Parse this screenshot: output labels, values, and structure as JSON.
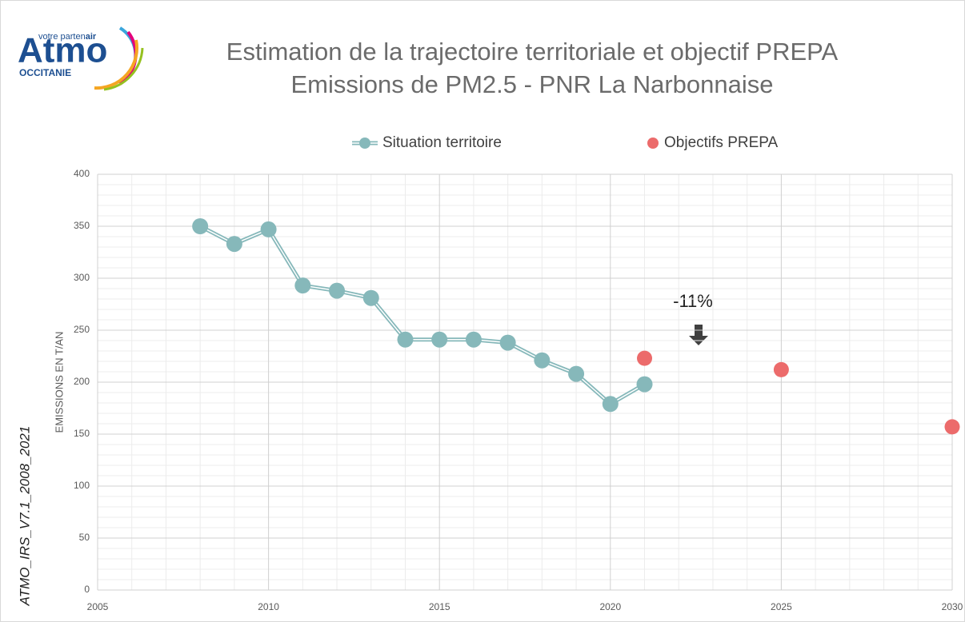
{
  "logo": {
    "tagline": "votre parten",
    "tagline_bold": "air",
    "name": "Atmo",
    "region": "OCCITANIE"
  },
  "side_label": "ATMO_IRS_V7.1_2008_2021",
  "chart_data": {
    "type": "line",
    "title": "Estimation de la trajectoire territoriale et objectif PREPA",
    "subtitle": "Emissions de PM2.5 - PNR La Narbonnaise",
    "ylabel": "EMISSIONS  EN T/AN",
    "annotation": "-11%",
    "series": [
      {
        "name": "Situation territoire",
        "color": "#86b8ba",
        "style": "line",
        "x": [
          2008,
          2009,
          2010,
          2011,
          2012,
          2013,
          2014,
          2015,
          2016,
          2017,
          2018,
          2019,
          2020,
          2021
        ],
        "values": [
          350,
          333,
          347,
          293,
          288,
          281,
          241,
          241,
          241,
          238,
          221,
          208,
          179,
          198
        ]
      },
      {
        "name": "Objectifs PREPA",
        "color": "#ec6b6b",
        "style": "points",
        "x": [
          2021,
          2025,
          2030
        ],
        "values": [
          223,
          212,
          157
        ]
      }
    ],
    "xlim": [
      2005,
      2030
    ],
    "xticks": [
      2005,
      2010,
      2015,
      2020,
      2025,
      2030
    ],
    "ylim": [
      0,
      400
    ],
    "yticks": [
      0,
      50,
      100,
      150,
      200,
      250,
      300,
      350,
      400
    ],
    "grid": true,
    "minor_grid": true,
    "legend": "top"
  }
}
